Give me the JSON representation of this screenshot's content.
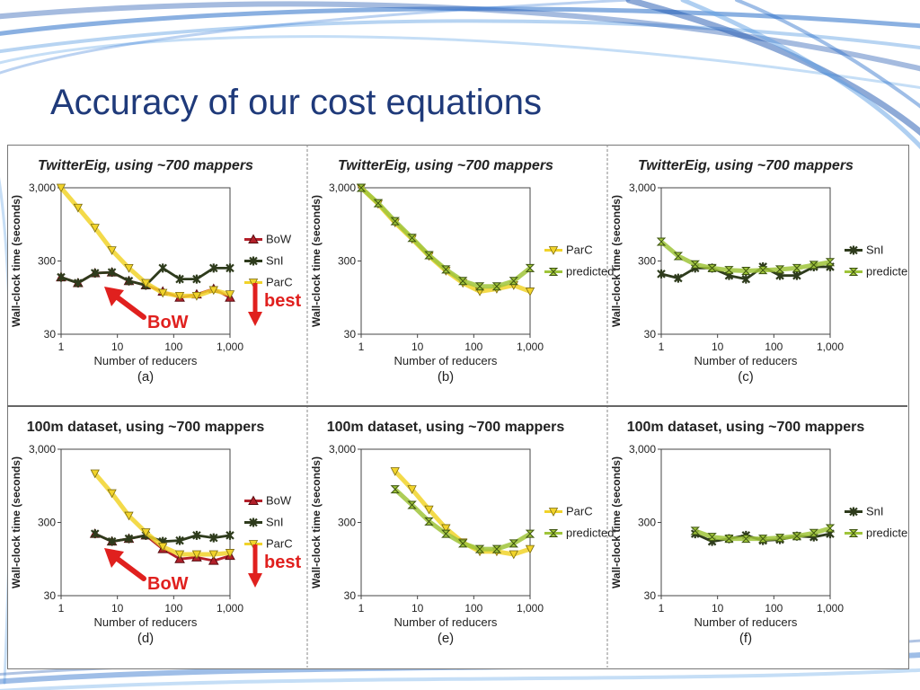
{
  "slide": {
    "title": "Accuracy of our cost equations"
  },
  "colors": {
    "title": "#1f3a7a",
    "BoW": "#b3202a",
    "SnI": "#2e3b1c",
    "ParC": "#f1d32a",
    "predicted": "#9fc43a",
    "annotation_red": "#e0201e"
  },
  "annotations": {
    "bow_label": "BoW",
    "best_label": "best"
  },
  "chart_data": [
    {
      "type": "line",
      "panel_label": "(a)",
      "title": "TwitterEig, using ~700 mappers",
      "xlabel": "Number of reducers",
      "ylabel": "Wall-clock time (seconds)",
      "xscale": "log",
      "yscale": "log",
      "xlim": [
        1,
        1000
      ],
      "ylim": [
        30,
        3000
      ],
      "xticks": [
        "1",
        "10",
        "100",
        "1,000"
      ],
      "yticks": [
        "30",
        "300",
        "3,000"
      ],
      "legend": "right",
      "grid": false,
      "annotated": true,
      "series": [
        {
          "name": "BoW",
          "x": [
            1,
            2,
            4,
            8,
            16,
            32,
            64,
            128,
            256,
            512,
            1000
          ],
          "y": [
            180,
            150,
            205,
            210,
            160,
            140,
            115,
            95,
            105,
            125,
            95
          ]
        },
        {
          "name": "SnI",
          "x": [
            1,
            2,
            4,
            8,
            16,
            32,
            64,
            128,
            256,
            512,
            1000
          ],
          "y": [
            180,
            150,
            205,
            210,
            160,
            140,
            240,
            170,
            170,
            240,
            240
          ]
        },
        {
          "name": "ParC",
          "x": [
            1,
            2,
            4,
            8,
            16,
            32,
            64,
            128,
            256,
            512,
            1000
          ],
          "y": [
            3000,
            1600,
            850,
            420,
            240,
            150,
            110,
            100,
            100,
            120,
            105
          ]
        }
      ]
    },
    {
      "type": "line",
      "panel_label": "(b)",
      "title": "TwitterEig, using ~700 mappers",
      "xlabel": "Number of reducers",
      "ylabel": "Wall-clock time (seconds)",
      "xscale": "log",
      "yscale": "log",
      "xlim": [
        1,
        1000
      ],
      "ylim": [
        30,
        3000
      ],
      "xticks": [
        "1",
        "10",
        "100",
        "1,000"
      ],
      "yticks": [
        "30",
        "300",
        "3,000"
      ],
      "legend": "right",
      "grid": false,
      "annotated": false,
      "series": [
        {
          "name": "ParC",
          "x": [
            1,
            2,
            4,
            8,
            16,
            32,
            64,
            128,
            256,
            512,
            1000
          ],
          "y": [
            3000,
            1800,
            1000,
            600,
            350,
            220,
            150,
            115,
            125,
            140,
            115
          ]
        },
        {
          "name": "predicted",
          "x": [
            1,
            2,
            4,
            8,
            16,
            32,
            64,
            128,
            256,
            512,
            1000
          ],
          "y": [
            3000,
            1850,
            1050,
            620,
            360,
            230,
            160,
            135,
            135,
            160,
            240
          ]
        }
      ]
    },
    {
      "type": "line",
      "panel_label": "(c)",
      "title": "TwitterEig, using ~700 mappers",
      "xlabel": "Number of reducers",
      "ylabel": "Wall-clock time (seconds)",
      "xscale": "log",
      "yscale": "log",
      "xlim": [
        1,
        1000
      ],
      "ylim": [
        30,
        3000
      ],
      "xticks": [
        "1",
        "10",
        "100",
        "1,000"
      ],
      "yticks": [
        "30",
        "300",
        "3,000"
      ],
      "legend": "right",
      "grid": false,
      "annotated": false,
      "series": [
        {
          "name": "SnI",
          "x": [
            1,
            2,
            4,
            8,
            16,
            32,
            64,
            128,
            256,
            512,
            1000
          ],
          "y": [
            200,
            175,
            240,
            240,
            190,
            170,
            250,
            190,
            190,
            250,
            250
          ]
        },
        {
          "name": "predicted",
          "x": [
            1,
            2,
            4,
            8,
            16,
            32,
            64,
            128,
            256,
            512,
            1000
          ],
          "y": [
            550,
            350,
            270,
            240,
            225,
            220,
            225,
            230,
            240,
            265,
            290
          ]
        }
      ]
    },
    {
      "type": "line",
      "panel_label": "(d)",
      "title": "100m dataset, using ~700 mappers",
      "xlabel": "Number of reducers",
      "ylabel": "Wall-clock time (seconds)",
      "xscale": "log",
      "yscale": "log",
      "xlim": [
        1,
        1000
      ],
      "ylim": [
        30,
        3000
      ],
      "xticks": [
        "1",
        "10",
        "100",
        "1,000"
      ],
      "yticks": [
        "30",
        "300",
        "3,000"
      ],
      "legend": "right",
      "grid": false,
      "annotated": true,
      "series": [
        {
          "name": "BoW",
          "x": [
            4,
            8,
            16,
            32,
            64,
            128,
            256,
            512,
            1000
          ],
          "y": [
            210,
            165,
            180,
            200,
            130,
            95,
            100,
            90,
            105
          ]
        },
        {
          "name": "SnI",
          "x": [
            4,
            8,
            16,
            32,
            64,
            128,
            256,
            512,
            1000
          ],
          "y": [
            210,
            165,
            180,
            200,
            165,
            170,
            200,
            185,
            200
          ]
        },
        {
          "name": "ParC",
          "x": [
            4,
            8,
            16,
            32,
            64,
            128,
            256,
            512,
            1000
          ],
          "y": [
            1400,
            750,
            370,
            220,
            140,
            110,
            110,
            110,
            115
          ]
        }
      ]
    },
    {
      "type": "line",
      "panel_label": "(e)",
      "title": "100m dataset, using ~700 mappers",
      "xlabel": "Number of reducers",
      "ylabel": "Wall-clock time (seconds)",
      "xscale": "log",
      "yscale": "log",
      "xlim": [
        1,
        1000
      ],
      "ylim": [
        30,
        3000
      ],
      "xticks": [
        "1",
        "10",
        "100",
        "1,000"
      ],
      "yticks": [
        "30",
        "300",
        "3,000"
      ],
      "legend": "right",
      "grid": false,
      "annotated": false,
      "series": [
        {
          "name": "ParC",
          "x": [
            4,
            8,
            16,
            32,
            64,
            128,
            256,
            512,
            1000
          ],
          "y": [
            1500,
            850,
            450,
            250,
            160,
            120,
            120,
            110,
            130
          ]
        },
        {
          "name": "predicted",
          "x": [
            4,
            8,
            16,
            32,
            64,
            128,
            256,
            512,
            1000
          ],
          "y": [
            850,
            520,
            310,
            210,
            155,
            130,
            130,
            155,
            210
          ]
        }
      ]
    },
    {
      "type": "line",
      "panel_label": "(f)",
      "title": "100m dataset, using ~700 mappers",
      "xlabel": "Number of reducers",
      "ylabel": "Wall-clock time (seconds)",
      "xscale": "log",
      "yscale": "log",
      "xlim": [
        1,
        1000
      ],
      "ylim": [
        30,
        3000
      ],
      "xticks": [
        "1",
        "10",
        "100",
        "1,000"
      ],
      "yticks": [
        "30",
        "300",
        "3,000"
      ],
      "legend": "right",
      "grid": false,
      "annotated": false,
      "series": [
        {
          "name": "SnI",
          "x": [
            4,
            8,
            16,
            32,
            64,
            128,
            256,
            512,
            1000
          ],
          "y": [
            210,
            165,
            180,
            200,
            170,
            175,
            195,
            190,
            210
          ]
        },
        {
          "name": "predicted",
          "x": [
            4,
            8,
            16,
            32,
            64,
            128,
            256,
            512,
            1000
          ],
          "y": [
            230,
            190,
            180,
            180,
            180,
            185,
            195,
            215,
            250
          ]
        }
      ]
    }
  ]
}
